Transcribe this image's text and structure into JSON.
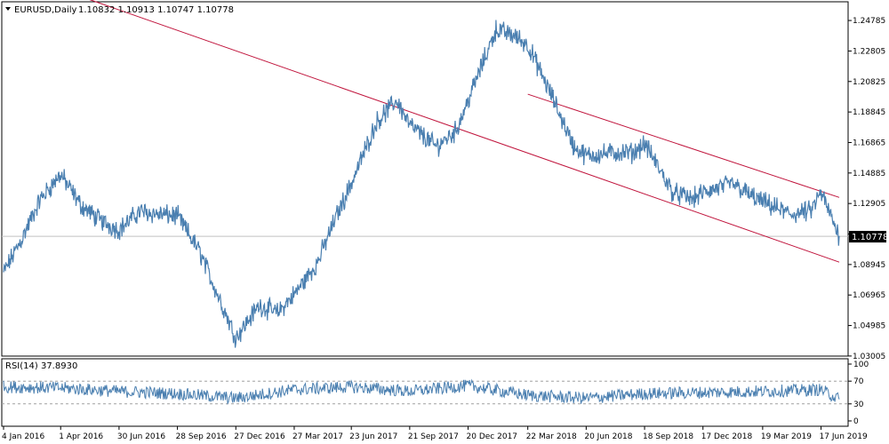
{
  "chart_data": [
    {
      "type": "line",
      "title": "EURUSD,Daily",
      "ohlc_text": "1.10832 1.10913 1.10747 1.10778",
      "last_price": 1.10778,
      "last_price_label": "1.10778",
      "ylim": [
        1.03,
        1.26
      ],
      "y_ticks": [
        "1.24785",
        "1.22805",
        "1.20825",
        "1.18845",
        "1.16865",
        "1.14885",
        "1.12905",
        "1.10925",
        "1.08945",
        "1.06965",
        "1.04985",
        "1.03005"
      ],
      "x_tick_labels": [
        "4 Jan 2016",
        "1 Apr 2016",
        "30 Jun 2016",
        "28 Sep 2016",
        "27 Dec 2016",
        "27 Mar 2017",
        "23 Jun 2017",
        "21 Sep 2017",
        "20 Dec 2017",
        "22 Mar 2018",
        "20 Jun 2018",
        "18 Sep 2018",
        "17 Dec 2018",
        "19 Mar 2019",
        "17 Jun 2019"
      ],
      "series": [
        {
          "x": [
            "4 Jan 2016",
            "1 Feb 2016",
            "1 Mar 2016",
            "1 Apr 2016",
            "2 May 2016",
            "1 Jun 2016",
            "30 Jun 2016",
            "1 Aug 2016",
            "1 Sep 2016",
            "28 Sep 2016",
            "1 Nov 2016",
            "1 Dec 2016",
            "27 Dec 2016",
            "1 Feb 2017",
            "1 Mar 2017",
            "27 Mar 2017",
            "1 May 2017",
            "1 Jun 2017",
            "23 Jun 2017",
            "1 Aug 2017",
            "1 Sep 2017",
            "21 Sep 2017",
            "1 Nov 2017",
            "1 Dec 2017",
            "20 Dec 2017",
            "1 Feb 2018",
            "1 Mar 2018",
            "22 Mar 2018",
            "1 May 2018",
            "1 Jun 2018",
            "20 Jun 2018",
            "1 Aug 2018",
            "1 Sep 2018",
            "18 Sep 2018",
            "1 Nov 2018",
            "1 Dec 2018",
            "17 Dec 2018",
            "1 Feb 2019",
            "1 Mar 2019",
            "19 Mar 2019",
            "1 May 2019",
            "1 Jun 2019",
            "17 Jun 2019",
            "1 Jul 2019",
            "15 Jul 2019"
          ],
          "values": [
            1.084,
            1.106,
            1.132,
            1.148,
            1.128,
            1.118,
            1.112,
            1.124,
            1.122,
            1.121,
            1.098,
            1.068,
            1.042,
            1.063,
            1.058,
            1.07,
            1.09,
            1.122,
            1.142,
            1.182,
            1.196,
            1.18,
            1.166,
            1.176,
            1.196,
            1.242,
            1.238,
            1.232,
            1.196,
            1.166,
            1.16,
            1.162,
            1.162,
            1.168,
            1.136,
            1.132,
            1.136,
            1.142,
            1.134,
            1.13,
            1.122,
            1.124,
            1.136,
            1.122,
            1.108
          ]
        }
      ],
      "trendlines": [
        {
          "from": {
            "x": "1 Apr 2016",
            "y": 1.268
          },
          "to": {
            "x": "15 Jul 2019",
            "y": 1.091
          }
        },
        {
          "from": {
            "x": "22 Mar 2018",
            "y": 1.2
          },
          "to": {
            "x": "15 Jul 2019",
            "y": 1.133
          }
        }
      ],
      "colors": {
        "line": "#4a7fb0",
        "trend": "#c0143c",
        "last_price_line": "#c0c0c0"
      }
    },
    {
      "type": "line",
      "title": "RSI(14) 37.8930",
      "ylim": [
        0,
        100
      ],
      "y_ticks": [
        "100",
        "70",
        "30",
        "0"
      ],
      "levels": [
        70,
        30
      ],
      "series": [
        {
          "x": [
            "4 Jan 2016",
            "1 Apr 2016",
            "30 Jun 2016",
            "28 Sep 2016",
            "27 Dec 2016",
            "27 Mar 2017",
            "23 Jun 2017",
            "21 Sep 2017",
            "20 Dec 2017",
            "22 Mar 2018",
            "20 Jun 2018",
            "18 Sep 2018",
            "17 Dec 2018",
            "19 Mar 2019",
            "17 Jun 2019",
            "15 Jul 2019"
          ],
          "values": [
            60,
            58,
            52,
            48,
            40,
            55,
            60,
            52,
            62,
            45,
            40,
            48,
            50,
            52,
            55,
            37.893
          ]
        }
      ],
      "colors": {
        "line": "#4a7fb0",
        "levels": "#a0a0a0"
      }
    }
  ]
}
